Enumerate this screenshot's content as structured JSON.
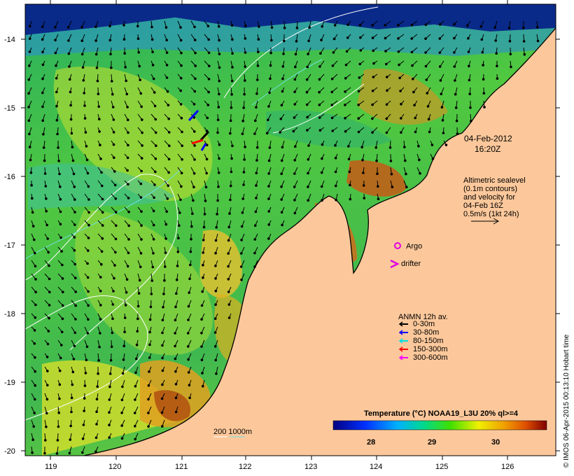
{
  "map": {
    "date_line1": "04-Feb-2012",
    "date_line2": "16:20Z",
    "altimetry_lines": [
      "Altimetric sealevel",
      "(0.1m contours)",
      "and velocity for",
      "04-Feb 16Z",
      "0.5m/s (1kt 24h)"
    ],
    "argo_label": "Argo",
    "drifter_label": "drifter",
    "anmn_title": "ANMN 12h av.",
    "anmn_items": [
      {
        "label": "0-30m",
        "color": "#000000"
      },
      {
        "label": "30-80m",
        "color": "#0000ff"
      },
      {
        "label": "80-150m",
        "color": "#00e0e0"
      },
      {
        "label": "150-300m",
        "color": "#ff0000"
      },
      {
        "label": "300-600m",
        "color": "#ff00ff"
      }
    ],
    "depth_label": "200  1000m",
    "colorbar_title": "Temperature (°C) NOAA19_L3U 20% ql>=4",
    "colorbar_ticks": [
      "28",
      "29",
      "30"
    ],
    "lat_labels": [
      "-14",
      "-15",
      "-16",
      "-17",
      "-18",
      "-19",
      "-20"
    ],
    "lon_labels": [
      "119",
      "120",
      "121",
      "122",
      "123",
      "124",
      "125",
      "126"
    ],
    "credit": "© IMOS 06-Apr-2015 00:13:10 Hobart time",
    "colors": {
      "land": "#fcc89b",
      "deep_sst": "#1a9a3c",
      "warm_sst": "#c85a10",
      "cool_sst": "#2090d0"
    }
  }
}
